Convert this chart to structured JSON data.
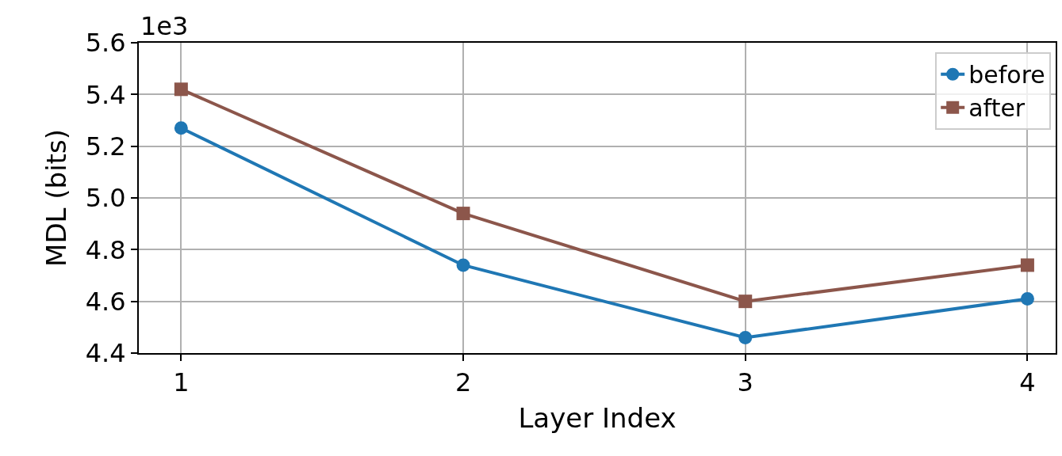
{
  "chart_data": {
    "type": "line",
    "xlabel": "Layer Index",
    "ylabel": "MDL (bits)",
    "x": [
      1,
      2,
      3,
      4
    ],
    "series": [
      {
        "name": "before",
        "color": "#1f77b4",
        "marker": "circle",
        "values": [
          5.27,
          4.74,
          4.46,
          4.61
        ]
      },
      {
        "name": "after",
        "color": "#8c564b",
        "marker": "square",
        "values": [
          5.42,
          4.94,
          4.6,
          4.74
        ]
      }
    ],
    "xlim": [
      0.85,
      4.1
    ],
    "xticks": [
      1,
      2,
      3,
      4
    ],
    "ylim": [
      4.4,
      5.6
    ],
    "yticks": [
      {
        "value": 4.4,
        "label": "4.4"
      },
      {
        "value": 4.6,
        "label": "4.6"
      },
      {
        "value": 4.8,
        "label": "4.8"
      },
      {
        "value": 5.0,
        "label": "5.0"
      },
      {
        "value": 5.2,
        "label": "5.2"
      },
      {
        "value": 5.4,
        "label": "5.4"
      },
      {
        "value": 5.6,
        "label": "5.6"
      }
    ],
    "annotations": [
      "1e3"
    ],
    "grid": true,
    "legend": "top right",
    "line_style": "solid"
  }
}
